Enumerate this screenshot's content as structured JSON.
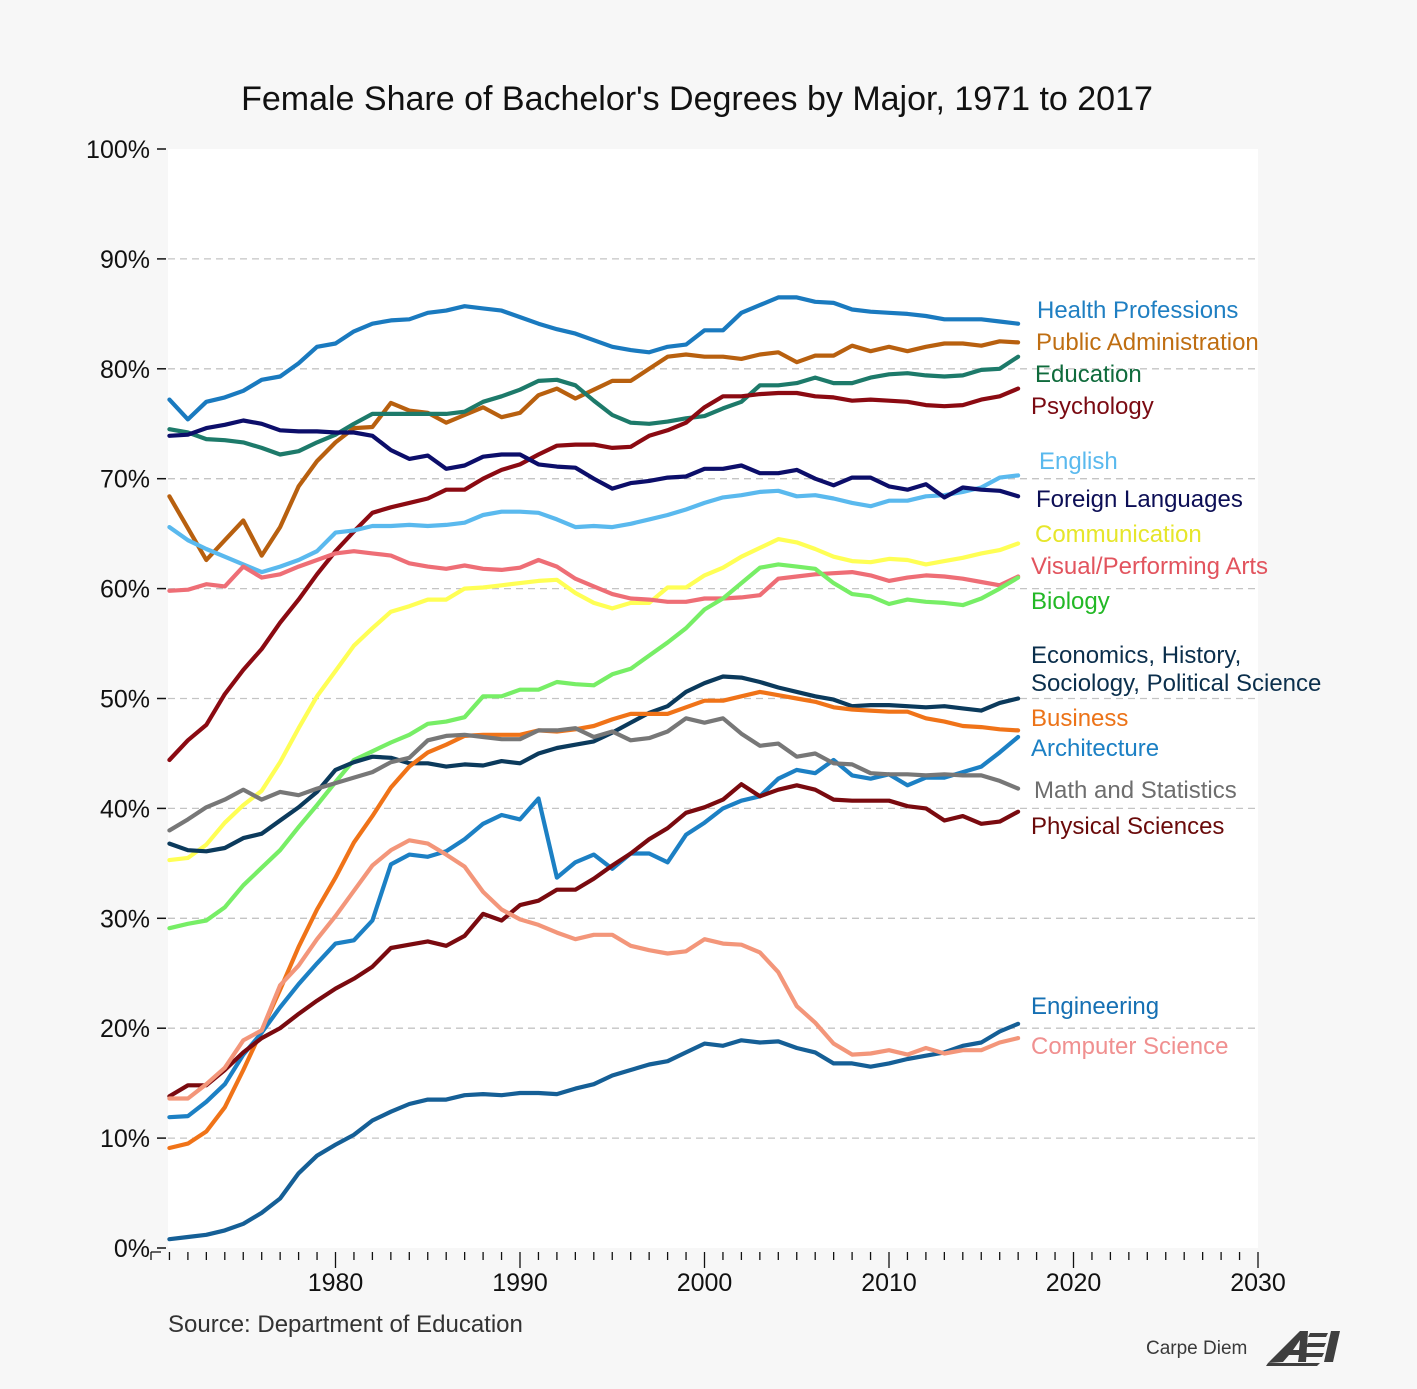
{
  "chart_data": {
    "type": "line",
    "title": "Female Share of Bachelor's Degrees by Major, 1971 to 2017",
    "xlabel": "",
    "ylabel": "",
    "xlim": [
      1970,
      2030
    ],
    "ylim": [
      0,
      100
    ],
    "x_ticks": [
      "1980",
      "1990",
      "2000",
      "2010",
      "2020",
      "2030"
    ],
    "y_ticks": [
      "0%",
      "10%",
      "20%",
      "30%",
      "40%",
      "50%",
      "60%",
      "70%",
      "80%",
      "90%",
      "100%"
    ],
    "grid": "horizontal dashed",
    "legend": "inline labels at right",
    "x": [
      1971,
      1972,
      1973,
      1974,
      1975,
      1976,
      1977,
      1978,
      1979,
      1980,
      1981,
      1982,
      1983,
      1984,
      1985,
      1986,
      1987,
      1988,
      1989,
      1990,
      1991,
      1992,
      1993,
      1994,
      1995,
      1996,
      1997,
      1998,
      1999,
      2000,
      2001,
      2002,
      2003,
      2004,
      2005,
      2006,
      2007,
      2008,
      2009,
      2010,
      2011,
      2012,
      2013,
      2014,
      2015,
      2016,
      2017
    ],
    "series": [
      {
        "name": "Health Professions",
        "label": "Health Professions",
        "color": "#1a7abf",
        "values": [
          77.2,
          75.4,
          77.0,
          77.4,
          78.0,
          79.0,
          79.3,
          80.5,
          82.0,
          82.3,
          83.4,
          84.1,
          84.4,
          84.5,
          85.1,
          85.3,
          85.7,
          85.5,
          85.3,
          84.7,
          84.1,
          83.6,
          83.2,
          82.6,
          82.0,
          81.7,
          81.5,
          82.0,
          82.2,
          83.5,
          83.5,
          85.1,
          85.8,
          86.5,
          86.5,
          86.1,
          86.0,
          85.4,
          85.2,
          85.1,
          85.0,
          84.8,
          84.5,
          84.5,
          84.5,
          84.3,
          84.1
        ]
      },
      {
        "name": "Public Administration",
        "label": "Public Administration",
        "color": "#b8600f",
        "values": [
          68.4,
          65.5,
          62.6,
          64.4,
          66.2,
          63.0,
          65.6,
          69.3,
          71.6,
          73.3,
          74.6,
          74.7,
          76.9,
          76.2,
          76.0,
          75.1,
          75.8,
          76.5,
          75.6,
          76.0,
          77.6,
          78.2,
          77.3,
          78.1,
          78.9,
          78.9,
          80.0,
          81.1,
          81.3,
          81.1,
          81.1,
          80.9,
          81.3,
          81.5,
          80.6,
          81.2,
          81.2,
          82.1,
          81.6,
          82.0,
          81.6,
          82.0,
          82.3,
          82.3,
          82.1,
          82.5,
          82.4
        ]
      },
      {
        "name": "Education",
        "label": "Education",
        "color": "#1d7a6a",
        "values": [
          74.5,
          74.2,
          73.6,
          73.5,
          73.3,
          72.8,
          72.2,
          72.5,
          73.3,
          74.0,
          75.0,
          75.9,
          75.9,
          75.9,
          75.9,
          75.9,
          76.1,
          77.0,
          77.5,
          78.1,
          78.9,
          79.0,
          78.5,
          77.1,
          75.8,
          75.1,
          75.0,
          75.2,
          75.5,
          75.7,
          76.4,
          77.0,
          78.5,
          78.5,
          78.7,
          79.2,
          78.7,
          78.7,
          79.2,
          79.5,
          79.6,
          79.4,
          79.3,
          79.4,
          79.9,
          80.0,
          81.1
        ]
      },
      {
        "name": "Psychology",
        "label": "Psychology",
        "color": "#8b0a12",
        "values": [
          44.4,
          46.2,
          47.6,
          50.4,
          52.6,
          54.5,
          56.9,
          59.0,
          61.3,
          63.4,
          65.2,
          66.9,
          67.4,
          67.8,
          68.2,
          69.0,
          69.0,
          70.0,
          70.8,
          71.3,
          72.2,
          73.0,
          73.1,
          73.1,
          72.8,
          72.9,
          73.9,
          74.4,
          75.1,
          76.5,
          77.5,
          77.5,
          77.7,
          77.8,
          77.8,
          77.5,
          77.4,
          77.1,
          77.2,
          77.1,
          77.0,
          76.7,
          76.6,
          76.7,
          77.2,
          77.5,
          78.2
        ]
      },
      {
        "name": "English",
        "label": "English",
        "color": "#5ab9ee",
        "values": [
          65.6,
          64.4,
          63.6,
          62.9,
          62.2,
          61.5,
          62.0,
          62.6,
          63.4,
          65.1,
          65.3,
          65.7,
          65.7,
          65.8,
          65.7,
          65.8,
          66.0,
          66.7,
          67.0,
          67.0,
          66.9,
          66.3,
          65.6,
          65.7,
          65.6,
          65.9,
          66.3,
          66.7,
          67.2,
          67.8,
          68.3,
          68.5,
          68.8,
          68.9,
          68.4,
          68.5,
          68.2,
          67.8,
          67.5,
          68.0,
          68.0,
          68.4,
          68.5,
          68.8,
          69.2,
          70.1,
          70.3
        ]
      },
      {
        "name": "Foreign Languages",
        "label": "Foreign Languages",
        "color": "#0c0e6a",
        "values": [
          73.9,
          74.0,
          74.6,
          74.9,
          75.3,
          75.0,
          74.4,
          74.3,
          74.3,
          74.2,
          74.2,
          73.9,
          72.6,
          71.8,
          72.1,
          70.9,
          71.2,
          72.0,
          72.2,
          72.2,
          71.3,
          71.1,
          71.0,
          70.0,
          69.1,
          69.6,
          69.8,
          70.1,
          70.2,
          70.9,
          70.9,
          71.2,
          70.5,
          70.5,
          70.8,
          70.0,
          69.4,
          70.1,
          70.1,
          69.3,
          69.0,
          69.5,
          68.3,
          69.2,
          69.0,
          68.9,
          68.4
        ]
      },
      {
        "name": "Communication",
        "label": "Communication",
        "color": "#ffff55",
        "values": [
          35.3,
          35.5,
          36.7,
          38.7,
          40.3,
          41.6,
          44.2,
          47.3,
          50.2,
          52.5,
          54.8,
          56.4,
          57.9,
          58.4,
          59.0,
          59.0,
          60.0,
          60.1,
          60.3,
          60.5,
          60.7,
          60.8,
          59.6,
          58.7,
          58.2,
          58.7,
          58.7,
          60.1,
          60.1,
          61.2,
          61.9,
          62.9,
          63.7,
          64.5,
          64.2,
          63.6,
          62.9,
          62.5,
          62.4,
          62.7,
          62.6,
          62.2,
          62.5,
          62.8,
          63.2,
          63.5,
          64.1
        ]
      },
      {
        "name": "Visual/Performing Arts",
        "label": "Visual/Performing Arts",
        "color": "#ee6e76",
        "values": [
          59.8,
          59.9,
          60.4,
          60.2,
          62.0,
          61.0,
          61.3,
          62.0,
          62.6,
          63.2,
          63.4,
          63.2,
          63.0,
          62.3,
          62.0,
          61.8,
          62.1,
          61.8,
          61.7,
          61.9,
          62.6,
          62.0,
          60.9,
          60.2,
          59.5,
          59.1,
          59.0,
          58.8,
          58.8,
          59.1,
          59.1,
          59.2,
          59.4,
          60.9,
          61.1,
          61.3,
          61.4,
          61.5,
          61.2,
          60.7,
          61.0,
          61.2,
          61.1,
          60.9,
          60.6,
          60.3,
          61.1
        ]
      },
      {
        "name": "Biology",
        "label": "Biology",
        "color": "#77ee66",
        "values": [
          29.1,
          29.5,
          29.8,
          31.0,
          33.0,
          34.6,
          36.2,
          38.3,
          40.3,
          42.4,
          44.4,
          45.2,
          46.0,
          46.7,
          47.7,
          47.9,
          48.3,
          50.2,
          50.2,
          50.8,
          50.8,
          51.5,
          51.3,
          51.2,
          52.2,
          52.7,
          53.9,
          55.1,
          56.4,
          58.1,
          59.1,
          60.5,
          61.9,
          62.2,
          62.0,
          61.8,
          60.5,
          59.5,
          59.3,
          58.6,
          59.0,
          58.8,
          58.7,
          58.5,
          59.1,
          60.0,
          61.0
        ]
      },
      {
        "name": "Economics, History, Sociology, Political Science",
        "label": "Economics, History, Sociology, Political Science",
        "color": "#0b3a5c",
        "values": [
          36.8,
          36.2,
          36.1,
          36.4,
          37.3,
          37.7,
          38.9,
          40.1,
          41.5,
          43.5,
          44.2,
          44.7,
          44.6,
          44.1,
          44.1,
          43.8,
          44.0,
          43.9,
          44.3,
          44.1,
          45.0,
          45.5,
          45.8,
          46.1,
          46.9,
          47.8,
          48.7,
          49.3,
          50.6,
          51.4,
          52.0,
          51.9,
          51.5,
          51.0,
          50.6,
          50.2,
          49.9,
          49.3,
          49.4,
          49.4,
          49.3,
          49.2,
          49.3,
          49.1,
          48.9,
          49.6,
          50.0
        ]
      },
      {
        "name": "Business",
        "label": "Business",
        "color": "#f07318",
        "values": [
          9.1,
          9.5,
          10.6,
          12.8,
          16.2,
          19.8,
          23.5,
          27.4,
          30.8,
          33.7,
          36.9,
          39.3,
          41.9,
          43.8,
          45.1,
          45.8,
          46.6,
          46.7,
          46.7,
          46.7,
          47.1,
          47.0,
          47.2,
          47.5,
          48.1,
          48.6,
          48.6,
          48.6,
          49.2,
          49.8,
          49.8,
          50.2,
          50.6,
          50.3,
          50.0,
          49.7,
          49.2,
          49.0,
          48.9,
          48.8,
          48.8,
          48.2,
          47.9,
          47.5,
          47.4,
          47.2,
          47.1
        ]
      },
      {
        "name": "Architecture",
        "label": "Architecture",
        "color": "#1c80c4",
        "values": [
          11.9,
          12.0,
          13.3,
          14.9,
          17.6,
          19.6,
          21.9,
          24.0,
          25.9,
          27.7,
          28.0,
          29.8,
          34.9,
          35.8,
          35.6,
          36.1,
          37.2,
          38.6,
          39.4,
          39.0,
          40.9,
          33.7,
          35.1,
          35.8,
          34.5,
          35.9,
          35.9,
          35.1,
          37.6,
          38.7,
          40.0,
          40.7,
          41.1,
          42.7,
          43.5,
          43.2,
          44.4,
          43.0,
          42.7,
          43.1,
          42.1,
          42.8,
          42.8,
          43.3,
          43.8,
          45.1,
          46.5
        ]
      },
      {
        "name": "Math and Statistics",
        "label": "Math and Statistics",
        "color": "#777777",
        "values": [
          38.0,
          39.0,
          40.1,
          40.8,
          41.7,
          40.8,
          41.5,
          41.2,
          41.8,
          42.3,
          42.8,
          43.3,
          44.2,
          44.6,
          46.2,
          46.6,
          46.7,
          46.5,
          46.3,
          46.3,
          47.1,
          47.1,
          47.3,
          46.5,
          47.0,
          46.2,
          46.4,
          47.0,
          48.2,
          47.8,
          48.2,
          46.8,
          45.7,
          45.9,
          44.7,
          45.0,
          44.1,
          44.0,
          43.2,
          43.1,
          43.1,
          43.0,
          43.1,
          43.0,
          43.0,
          42.5,
          41.8
        ]
      },
      {
        "name": "Physical Sciences",
        "label": "Physical Sciences",
        "color": "#7a0a0f",
        "values": [
          13.8,
          14.8,
          14.8,
          16.2,
          17.8,
          19.1,
          20.0,
          21.3,
          22.5,
          23.6,
          24.5,
          25.6,
          27.3,
          27.6,
          27.9,
          27.5,
          28.4,
          30.4,
          29.8,
          31.2,
          31.6,
          32.6,
          32.6,
          33.6,
          34.8,
          35.9,
          37.2,
          38.2,
          39.6,
          40.1,
          40.8,
          42.2,
          41.1,
          41.7,
          42.1,
          41.7,
          40.8,
          40.7,
          40.7,
          40.7,
          40.2,
          40.0,
          38.9,
          39.3,
          38.6,
          38.8,
          39.7
        ]
      },
      {
        "name": "Engineering",
        "label": "Engineering",
        "color": "#155f96",
        "values": [
          0.8,
          1.0,
          1.2,
          1.6,
          2.2,
          3.2,
          4.5,
          6.8,
          8.4,
          9.4,
          10.3,
          11.6,
          12.4,
          13.1,
          13.5,
          13.5,
          13.9,
          14.0,
          13.9,
          14.1,
          14.1,
          14.0,
          14.5,
          14.9,
          15.7,
          16.2,
          16.7,
          17.0,
          17.8,
          18.6,
          18.4,
          18.9,
          18.7,
          18.8,
          18.2,
          17.8,
          16.8,
          16.8,
          16.5,
          16.8,
          17.2,
          17.5,
          17.8,
          18.4,
          18.7,
          19.7,
          20.4
        ]
      },
      {
        "name": "Computer Science",
        "label": "Computer Science",
        "color": "#f3967a",
        "values": [
          13.6,
          13.6,
          14.9,
          16.4,
          18.9,
          19.8,
          23.9,
          25.7,
          28.1,
          30.2,
          32.5,
          34.8,
          36.2,
          37.1,
          36.8,
          35.8,
          34.7,
          32.4,
          30.8,
          29.9,
          29.4,
          28.7,
          28.1,
          28.5,
          28.5,
          27.5,
          27.1,
          26.8,
          27.0,
          28.1,
          27.7,
          27.6,
          26.9,
          25.1,
          22.0,
          20.5,
          18.6,
          17.6,
          17.7,
          18.0,
          17.6,
          18.2,
          17.7,
          18.0,
          18.0,
          18.7,
          19.1
        ]
      }
    ],
    "labels_display": [
      {
        "series": "Health Professions",
        "lines": [
          "Health Professions"
        ]
      },
      {
        "series": "Public Administration",
        "lines": [
          "Public Administration"
        ]
      },
      {
        "series": "Education",
        "lines": [
          "Education"
        ]
      },
      {
        "series": "Psychology",
        "lines": [
          "Psychology"
        ]
      },
      {
        "series": "English",
        "lines": [
          "English"
        ]
      },
      {
        "series": "Foreign Languages",
        "lines": [
          "Foreign Languages"
        ]
      },
      {
        "series": "Communication",
        "lines": [
          "Communication"
        ]
      },
      {
        "series": "Visual/Performing Arts",
        "lines": [
          "Visual/Performing Arts"
        ]
      },
      {
        "series": "Biology",
        "lines": [
          "Biology"
        ]
      },
      {
        "series": "Economics, History, Sociology, Political Science",
        "lines": [
          "Economics, History,",
          "Sociology, Political Science"
        ]
      },
      {
        "series": "Business",
        "lines": [
          "Business"
        ]
      },
      {
        "series": "Architecture",
        "lines": [
          "Architecture"
        ]
      },
      {
        "series": "Math and Statistics",
        "lines": [
          "Math and Statistics"
        ]
      },
      {
        "series": "Physical Sciences",
        "lines": [
          "Physical Sciences"
        ]
      },
      {
        "series": "Engineering",
        "lines": [
          "Engineering"
        ]
      },
      {
        "series": "Computer Science",
        "lines": [
          "Computer Science"
        ]
      }
    ],
    "label_colors": {
      "Health Professions": "#1f7fc2",
      "Public Administration": "#bf6e12",
      "Education": "#0f6b3c",
      "Psychology": "#7a0a12",
      "English": "#5ab9ee",
      "Foreign Languages": "#0c0e55",
      "Communication": "#e6e62a",
      "Visual/Performing Arts": "#e2545e",
      "Biology": "#22b825",
      "Economics, History, Sociology, Political Science": "#0b2f4c",
      "Business": "#ec7318",
      "Architecture": "#1c80c4",
      "Math and Statistics": "#6e6e6e",
      "Physical Sciences": "#6a0a0a",
      "Engineering": "#1670b3",
      "Computer Science": "#f09090"
    },
    "source": "Source: Department of Education"
  },
  "footer": {
    "brand_text": "Carpe Diem",
    "logo": "AEI"
  }
}
